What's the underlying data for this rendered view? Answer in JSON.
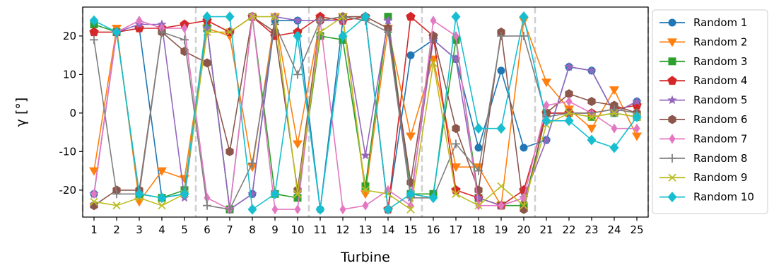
{
  "chart_data": {
    "type": "line",
    "xlabel": "Turbine",
    "ylabel": "γ [°]",
    "x": [
      1,
      2,
      3,
      4,
      5,
      6,
      7,
      8,
      9,
      10,
      11,
      12,
      13,
      14,
      15,
      16,
      17,
      18,
      19,
      20,
      21,
      22,
      23,
      24,
      25
    ],
    "xlim": [
      0.5,
      25.5
    ],
    "ylim": [
      -27,
      27.5
    ],
    "yticks": [
      -20,
      -10,
      0,
      10,
      20
    ],
    "group_boundaries": [
      0.5,
      5.5,
      10.5,
      15.5,
      20.5,
      25.5
    ],
    "grid": false,
    "legend_position": "right",
    "series": [
      {
        "name": "Random 1",
        "color": "#1f77b4",
        "marker": "circle",
        "values": [
          -21,
          21,
          22,
          -22,
          -21,
          22,
          -25,
          -21,
          24,
          24,
          -25,
          24,
          25,
          -25,
          15,
          19,
          14,
          -9,
          11,
          -9,
          -7,
          12,
          11,
          0,
          3
        ]
      },
      {
        "name": "Random 2",
        "color": "#ff7f0e",
        "marker": "triangle-down",
        "values": [
          -15,
          22,
          -23,
          -15,
          -17,
          22,
          20,
          -14,
          25,
          -8,
          24,
          25,
          -21,
          22,
          -6,
          14,
          -14,
          -14,
          -24,
          24,
          8,
          1,
          -4,
          6,
          -6
        ]
      },
      {
        "name": "Random 3",
        "color": "#2ca02c",
        "marker": "square",
        "values": [
          23,
          21,
          -21,
          -22,
          -20,
          22,
          -25,
          25,
          -21,
          -22,
          20,
          19,
          -19,
          25,
          -21,
          -21,
          19,
          -22,
          -24,
          -24,
          0,
          0,
          -1,
          0,
          -1
        ]
      },
      {
        "name": "Random 4",
        "color": "#d62728",
        "marker": "pentagon",
        "values": [
          21,
          21,
          22,
          22,
          23,
          24,
          21,
          25,
          20,
          21,
          25,
          24,
          25,
          -25,
          25,
          20,
          -20,
          -22,
          -24,
          -20,
          0,
          0,
          0,
          1,
          2
        ]
      },
      {
        "name": "Random 5",
        "color": "#9467bd",
        "marker": "star",
        "values": [
          -21,
          21,
          23,
          23,
          -22,
          22,
          -25,
          -21,
          25,
          24,
          24,
          24,
          -11,
          24,
          -22,
          19,
          14,
          -22,
          -24,
          -22,
          -7,
          12,
          11,
          0,
          3
        ]
      },
      {
        "name": "Random 6",
        "color": "#8c564b",
        "marker": "hexagon",
        "values": [
          -24,
          -20,
          -20,
          21,
          16,
          13,
          -10,
          25,
          21,
          -20,
          24,
          25,
          25,
          22,
          -18,
          20,
          -4,
          -20,
          21,
          -25,
          0,
          5,
          3,
          2,
          0
        ]
      },
      {
        "name": "Random 7",
        "color": "#e377c2",
        "marker": "diamond-thin",
        "values": [
          -21,
          21,
          24,
          22,
          22,
          -22,
          -25,
          25,
          -25,
          -25,
          24,
          -25,
          -24,
          -20,
          -24,
          24,
          20,
          -24,
          -24,
          -22,
          2,
          3,
          0,
          -4,
          -4
        ]
      },
      {
        "name": "Random 8",
        "color": "#7f7f7f",
        "marker": "plus",
        "values": [
          19,
          -21,
          -21,
          21,
          19,
          -24,
          -25,
          -13,
          23,
          10,
          24,
          25,
          24,
          21,
          -22,
          -22,
          -8,
          -15,
          20,
          20,
          -1,
          0,
          0,
          1,
          0
        ]
      },
      {
        "name": "Random 9",
        "color": "#bcbd22",
        "marker": "x",
        "values": [
          -23,
          -24,
          -22,
          -24,
          -21,
          21,
          21,
          25,
          25,
          -21,
          21,
          25,
          -20,
          -21,
          -25,
          13,
          -21,
          -24,
          -19,
          -24,
          -3,
          0,
          -1,
          0,
          -1
        ]
      },
      {
        "name": "Random 10",
        "color": "#17becf",
        "marker": "diamond",
        "values": [
          24,
          21,
          -21,
          -22,
          -21,
          25,
          25,
          -25,
          -21,
          20,
          -25,
          20,
          25,
          -25,
          -21,
          -22,
          25,
          -4,
          -4,
          25,
          -2,
          -2,
          -7,
          -9,
          -1
        ]
      }
    ]
  }
}
